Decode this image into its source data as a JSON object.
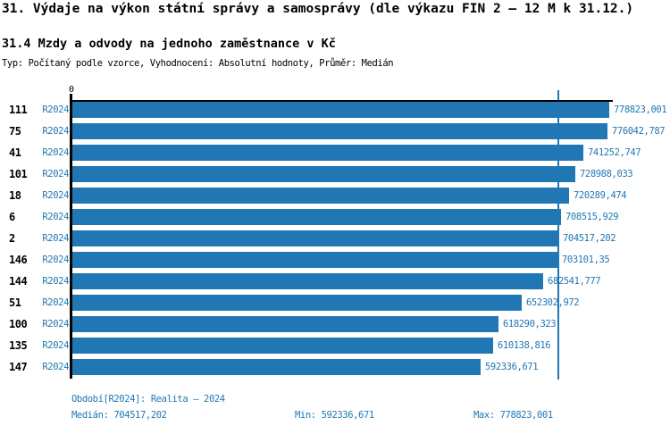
{
  "title": "31. Výdaje na výkon státní správy a samosprávy (dle výkazu FIN 2 – 12 M k 31.12.)",
  "subtitle": "31.4 Mzdy a odvody na jednoho zaměstnance v Kč",
  "meta": "Typ: Počítaný podle vzorce, Vyhodnocení: Absolutní hodnoty, Průměr: Medián",
  "colors": {
    "bar": "#2077b4",
    "accent_blue": "#1f77b4",
    "axis": "#000000",
    "background": "#ffffff"
  },
  "chart_data": {
    "type": "bar",
    "orientation": "horizontal",
    "title": "31.4 Mzdy a odvody na jednoho zaměstnance v Kč",
    "xlabel": "",
    "ylabel": "",
    "xlim": [
      0,
      784000
    ],
    "axis_zero_label": "0",
    "grid": false,
    "legend_position": "none",
    "categories": [
      "111",
      "75",
      "41",
      "101",
      "18",
      "6",
      "2",
      "146",
      "144",
      "51",
      "100",
      "135",
      "147"
    ],
    "series": [
      {
        "name": "R2024",
        "values": [
          778823.001,
          776042.787,
          741252.747,
          728988.033,
          720289.474,
          708515.929,
          704517.202,
          703101.35,
          682541.777,
          652302.972,
          618290.323,
          610138.816,
          592336.671
        ]
      }
    ],
    "value_labels": [
      "778823,001",
      "776042,787",
      "741252,747",
      "728988,033",
      "720289,474",
      "708515,929",
      "704517,202",
      "703101,35",
      "682541,777",
      "652302,972",
      "618290,323",
      "610138,816",
      "592336,671"
    ],
    "row_period_label": "R2024",
    "median_value": 704517.202,
    "median_line": true
  },
  "footer": {
    "period": "Období[R2024]: Realita – 2024",
    "median": "Medián: 704517,202",
    "min": "Min: 592336,671",
    "max": "Max: 778823,001"
  }
}
